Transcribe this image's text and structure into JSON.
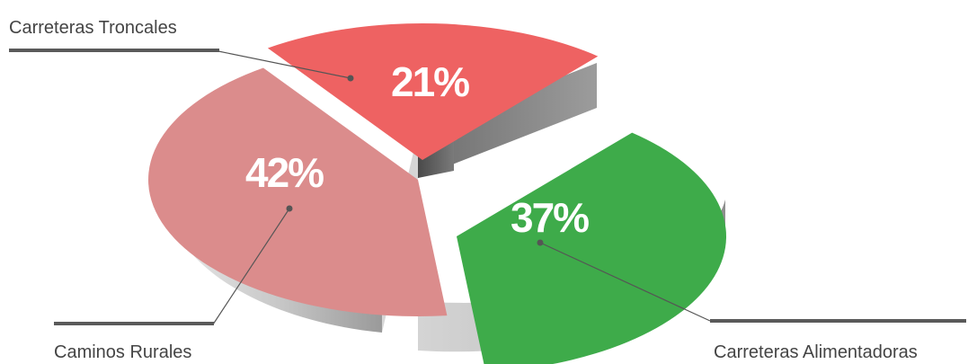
{
  "chart_data": {
    "type": "pie",
    "title": "",
    "unit": "%",
    "three_d": true,
    "exploded": true,
    "slices": [
      {
        "name": "Carreteras Troncales",
        "value": 21,
        "label": "21%",
        "color": "#ee6262"
      },
      {
        "name": "Carreteras Alimentadoras",
        "value": 37,
        "label": "37%",
        "color": "#3eab4a"
      },
      {
        "name": "Caminos Rurales",
        "value": 42,
        "label": "42%",
        "color": "#db8c8c"
      }
    ]
  }
}
